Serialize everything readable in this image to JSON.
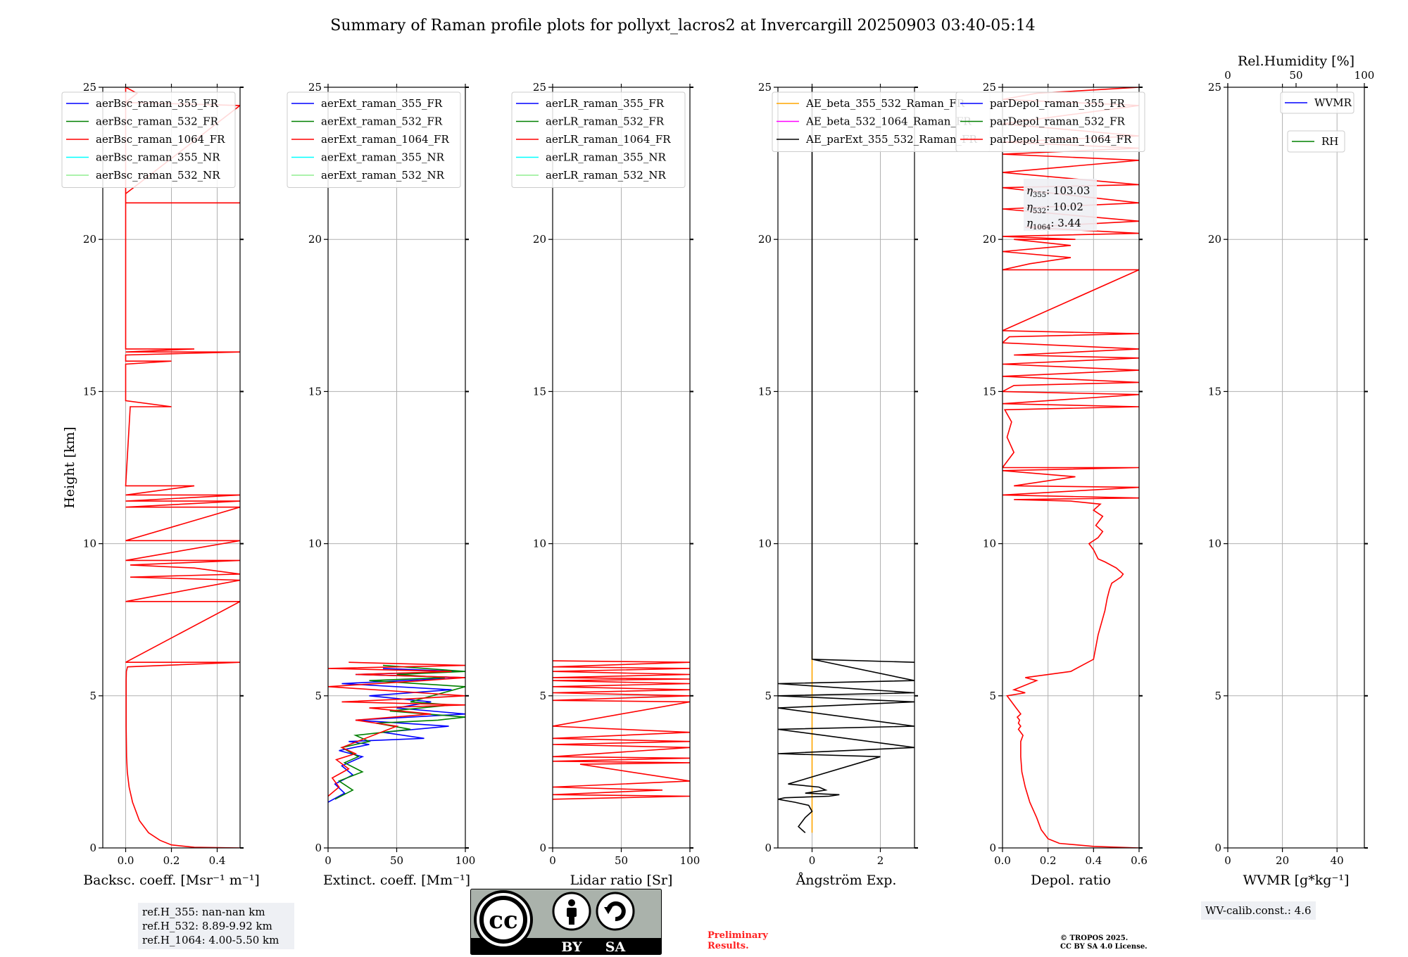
{
  "title": "Summary of Raman profile plots for pollyxt_lacros2 at Invercargill 20250903 03:40-05:14",
  "chart_data": [
    {
      "type": "line",
      "id": "bsc",
      "xlabel": "Backsc. coeff. [Msr⁻¹ m⁻¹]",
      "ylabel": "Height [km]",
      "xlim": [
        -0.1,
        0.5
      ],
      "ylim": [
        0,
        25
      ],
      "xticks": [
        0.0,
        0.2,
        0.4
      ],
      "xtick_labels": [
        "0.0",
        "0.2",
        "0.4"
      ],
      "yticks": [
        0,
        5,
        10,
        15,
        20,
        25
      ],
      "grid": true,
      "legend": [
        "aerBsc_raman_355_FR",
        "aerBsc_raman_532_FR",
        "aerBsc_raman_1064_FR",
        "aerBsc_raman_355_NR",
        "aerBsc_raman_532_NR"
      ],
      "series": [
        {
          "name": "aerBsc_raman_1064_FR",
          "color": "#ff0000",
          "x": [
            0.5,
            0.3,
            0.2,
            0.15,
            0.1,
            0.06,
            0.03,
            0.015,
            0.007,
            0.004,
            0.003,
            0.002,
            0.002,
            0.002,
            0.002,
            0.003,
            0.008,
            0.5,
            0.0,
            0.5,
            0.0,
            0.5,
            0.02,
            0.5,
            0.3,
            0.02,
            0.5,
            0.0,
            0.5,
            0.0,
            0.5,
            0.0,
            0.5,
            0.0,
            0.5,
            0.0,
            0.3,
            0.0,
            0.02,
            0.2,
            0.0,
            0.0,
            0.2,
            0.0,
            0.0,
            0.5,
            0.0,
            0.3,
            0.0,
            0.0,
            0.5,
            0.0,
            0.0
          ],
          "y": [
            0.0,
            0.02,
            0.1,
            0.25,
            0.5,
            0.9,
            1.5,
            2.0,
            2.5,
            3.0,
            3.5,
            4.0,
            4.5,
            5.0,
            5.5,
            5.8,
            5.95,
            6.1,
            6.1,
            8.1,
            8.1,
            8.8,
            8.9,
            9.0,
            9.2,
            9.3,
            9.45,
            9.45,
            10.1,
            10.1,
            11.2,
            11.2,
            11.4,
            11.4,
            11.6,
            11.6,
            11.9,
            11.9,
            14.5,
            14.5,
            14.7,
            15.9,
            16.0,
            16.0,
            16.2,
            16.3,
            16.3,
            16.4,
            16.4,
            21.2,
            21.2,
            21.2,
            25.0
          ]
        },
        {
          "name": "aerBsc_raman_1064_FR_top",
          "color": "#ff0000",
          "x": [
            0.0,
            0.5,
            0.0,
            0.05,
            0.0
          ],
          "y": [
            21.5,
            24.4,
            24.5,
            24.8,
            25.0
          ]
        }
      ]
    },
    {
      "type": "line",
      "id": "ext",
      "xlabel": "Extinct. coeff. [Mm⁻¹]",
      "xlim": [
        0,
        100
      ],
      "ylim": [
        0,
        25
      ],
      "xticks": [
        0,
        50,
        100
      ],
      "xtick_labels": [
        "0",
        "50",
        "100"
      ],
      "yticks": [
        0,
        5,
        10,
        15,
        20,
        25
      ],
      "grid": true,
      "legend": [
        "aerExt_raman_355_FR",
        "aerExt_raman_532_FR",
        "aerExt_raman_1064_FR",
        "aerExt_raman_355_NR",
        "aerExt_raman_532_NR"
      ],
      "series": [
        {
          "name": "aerExt_raman_355_FR",
          "color": "#0000ff",
          "x": [
            0,
            12,
            5,
            18,
            10,
            25,
            8,
            30,
            15,
            70,
            40,
            88,
            20,
            60,
            100,
            50,
            75,
            30,
            90,
            10,
            100,
            20,
            95,
            40
          ],
          "y": [
            1.5,
            1.8,
            2.1,
            2.4,
            2.7,
            3.0,
            3.2,
            3.4,
            3.5,
            3.6,
            3.8,
            4.0,
            4.2,
            4.3,
            4.4,
            4.6,
            4.8,
            5.0,
            5.2,
            5.4,
            5.6,
            5.7,
            5.8,
            5.9
          ]
        },
        {
          "name": "aerExt_raman_532_FR",
          "color": "#008000",
          "x": [
            5,
            18,
            8,
            25,
            12,
            22,
            10,
            30,
            20,
            60,
            35,
            80,
            100,
            45,
            90,
            60,
            100,
            30,
            85,
            50,
            100,
            40
          ],
          "y": [
            1.6,
            1.9,
            2.2,
            2.5,
            2.8,
            3.0,
            3.3,
            3.5,
            3.7,
            3.9,
            4.1,
            4.2,
            4.3,
            4.5,
            4.7,
            4.8,
            5.3,
            5.5,
            5.6,
            5.7,
            5.8,
            6.0
          ]
        },
        {
          "name": "aerExt_raman_1064_FR",
          "color": "#ff0000",
          "x": [
            0,
            8,
            3,
            15,
            6,
            20,
            10,
            50,
            20,
            75,
            30,
            100,
            10,
            60,
            100,
            0,
            70,
            100,
            20,
            90,
            0,
            100,
            15
          ],
          "y": [
            1.7,
            2.0,
            2.3,
            2.6,
            2.9,
            3.1,
            3.3,
            4.0,
            4.2,
            4.4,
            4.6,
            4.7,
            4.8,
            4.9,
            5.0,
            5.3,
            5.5,
            5.6,
            5.7,
            5.8,
            5.9,
            6.0,
            6.1
          ]
        }
      ]
    },
    {
      "type": "line",
      "id": "lr",
      "xlabel": "Lidar ratio [Sr]",
      "xlim": [
        0,
        100
      ],
      "ylim": [
        0,
        25
      ],
      "xticks": [
        0,
        50,
        100
      ],
      "xtick_labels": [
        "0",
        "50",
        "100"
      ],
      "yticks": [
        0,
        5,
        10,
        15,
        20,
        25
      ],
      "grid": true,
      "legend": [
        "aerLR_raman_355_FR",
        "aerLR_raman_532_FR",
        "aerLR_raman_1064_FR",
        "aerLR_raman_355_NR",
        "aerLR_raman_532_NR"
      ],
      "series": [
        {
          "name": "aerLR_raman_1064_FR",
          "color": "#ff0000",
          "x": [
            0,
            100,
            0,
            80,
            0,
            100,
            20,
            100,
            0,
            100,
            0,
            100,
            0,
            100,
            0,
            100,
            0,
            100,
            0,
            100,
            0,
            100,
            0,
            100,
            0,
            100,
            0,
            100,
            0,
            100,
            0,
            100,
            0
          ],
          "y": [
            1.6,
            1.7,
            1.75,
            1.9,
            2.0,
            2.2,
            2.75,
            2.8,
            2.85,
            2.95,
            3.0,
            3.3,
            3.4,
            3.5,
            3.6,
            3.8,
            4.0,
            4.8,
            4.85,
            5.0,
            5.1,
            5.2,
            5.3,
            5.4,
            5.5,
            5.55,
            5.6,
            5.7,
            5.8,
            5.9,
            5.95,
            6.1,
            6.15
          ]
        }
      ]
    },
    {
      "type": "line",
      "id": "ae",
      "xlabel": "Ångström Exp.",
      "xlim": [
        -1,
        3
      ],
      "ylim": [
        0,
        25
      ],
      "xticks": [
        0,
        2
      ],
      "xtick_labels": [
        "0",
        "2"
      ],
      "yticks": [
        0,
        5,
        10,
        15,
        20,
        25
      ],
      "grid": true,
      "legend": [
        "AE_beta_355_532_Raman_FR",
        "AE_beta_532_1064_Raman_FR",
        "AE_parExt_355_532_Raman_FR"
      ],
      "series": [
        {
          "name": "AE_beta_355_532_Raman_FR",
          "color": "#ffa500",
          "x": [
            0,
            0
          ],
          "y": [
            0.5,
            6.5
          ]
        },
        {
          "name": "AE_parExt_355_532_Raman_FR",
          "color": "#000000",
          "x": [
            -0.2,
            -0.4,
            -0.2,
            0.0,
            -0.1,
            -0.5,
            -1.0,
            -0.8,
            0.5,
            0.8,
            -0.2,
            0.4,
            0.2,
            -0.7,
            2.0,
            -1.0,
            3.0,
            -1.0,
            3.0,
            -1.0,
            3.0,
            -1.0,
            3.0,
            -1.0,
            3.0,
            0.0,
            3.0,
            0.0,
            0.0
          ],
          "y": [
            0.5,
            0.7,
            1.0,
            1.2,
            1.4,
            1.5,
            1.6,
            1.65,
            1.7,
            1.75,
            1.8,
            1.9,
            2.0,
            2.1,
            3.0,
            3.1,
            3.3,
            3.9,
            4.0,
            4.6,
            4.8,
            5.0,
            5.1,
            5.4,
            5.5,
            6.2,
            6.1,
            6.2,
            25.0
          ]
        }
      ]
    },
    {
      "type": "line",
      "id": "depol",
      "xlabel": "Depol. ratio",
      "xlim": [
        0.0,
        0.6
      ],
      "ylim": [
        0,
        25
      ],
      "xticks": [
        0.0,
        0.2,
        0.4,
        0.6
      ],
      "xtick_labels": [
        "0.0",
        "0.2",
        "0.4",
        "0.6"
      ],
      "yticks": [
        0,
        5,
        10,
        15,
        20,
        25
      ],
      "grid": true,
      "legend": [
        "parDepol_raman_355_FR",
        "parDepol_raman_532_FR",
        "parDepol_raman_1064_FR"
      ],
      "annotations": [
        {
          "sym": "η",
          "sub": "355",
          "val": ": 103.03"
        },
        {
          "sym": "η",
          "sub": "532",
          "val": ": 10.02"
        },
        {
          "sym": "η",
          "sub": "1064",
          "val": ": 3.44"
        }
      ],
      "series": [
        {
          "name": "parDepol_raman_1064_FR",
          "color": "#ff0000",
          "x": [
            0.6,
            0.4,
            0.25,
            0.2,
            0.17,
            0.15,
            0.12,
            0.1,
            0.085,
            0.08,
            0.08,
            0.09,
            0.07,
            0.08,
            0.07,
            0.075,
            0.065,
            0.08,
            0.06,
            0.04,
            0.02,
            0.1,
            0.05,
            0.15,
            0.1,
            0.3,
            0.4,
            0.42,
            0.45,
            0.46,
            0.47,
            0.48,
            0.5,
            0.52,
            0.53,
            0.5,
            0.45,
            0.42,
            0.4,
            0.38,
            0.42,
            0.44,
            0.41,
            0.44,
            0.42,
            0.4,
            0.43,
            0.3,
            0.05,
            0.6,
            0.0,
            0.6,
            0.05,
            0.32,
            0.0,
            0.6,
            0.0,
            0.05,
            0.02,
            0.04,
            0.01,
            0.6,
            0.0,
            0.6,
            0.0,
            0.05,
            0.6,
            0.0,
            0.6,
            0.0,
            0.6,
            0.05,
            0.6,
            0.0,
            0.03,
            0.6,
            0.0,
            0.6,
            0.0,
            0.12,
            0.3,
            0.0,
            0.3,
            0.05,
            0.32,
            0.0,
            0.6,
            0.1,
            0.6,
            0.0,
            0.6,
            0.0,
            0.6,
            0.0,
            0.3,
            0.6,
            0.0,
            0.6,
            0.0,
            0.6,
            0.0,
            0.6,
            0.0,
            0.15,
            0.6
          ],
          "y": [
            0.0,
            0.05,
            0.15,
            0.3,
            0.6,
            1.0,
            1.5,
            2.0,
            2.5,
            3.0,
            3.5,
            3.7,
            3.9,
            4.0,
            4.1,
            4.2,
            4.3,
            4.4,
            4.6,
            4.8,
            5.0,
            5.1,
            5.2,
            5.5,
            5.6,
            5.8,
            6.2,
            7.0,
            7.8,
            8.2,
            8.5,
            8.7,
            8.8,
            8.9,
            9.0,
            9.2,
            9.4,
            9.5,
            9.8,
            10.0,
            10.2,
            10.4,
            10.6,
            10.9,
            11.0,
            11.1,
            11.3,
            11.4,
            11.45,
            11.5,
            11.6,
            11.85,
            11.9,
            12.2,
            12.4,
            12.5,
            12.5,
            13.0,
            13.5,
            14.0,
            14.4,
            14.5,
            14.6,
            14.9,
            15.0,
            15.2,
            15.3,
            15.5,
            15.7,
            15.9,
            16.1,
            16.2,
            16.4,
            16.6,
            16.8,
            16.9,
            17.0,
            19.0,
            19.0,
            19.2,
            19.4,
            19.6,
            19.8,
            20.0,
            20.0,
            20.1,
            20.2,
            20.4,
            20.6,
            21.0,
            21.2,
            21.7,
            21.8,
            22.2,
            22.4,
            22.6,
            22.8,
            23.0,
            23.2,
            23.4,
            23.8,
            24.4,
            24.6,
            24.8,
            25.0
          ]
        }
      ]
    },
    {
      "type": "line",
      "id": "wvmr",
      "xlabel": "WVMR [g*kg⁻¹]",
      "xlim": [
        0,
        50
      ],
      "ylim": [
        0,
        25
      ],
      "xticks": [
        0,
        20,
        40
      ],
      "xtick_labels": [
        "0",
        "20",
        "40"
      ],
      "yticks": [
        0,
        5,
        10,
        15,
        20,
        25
      ],
      "top_axis": {
        "label": "Rel.Humidity [%]",
        "ticks": [
          0,
          50,
          100
        ],
        "tick_labels": [
          "0",
          "50",
          "100"
        ],
        "lim": [
          0,
          100
        ]
      },
      "grid": true,
      "legend": [
        "WVMR",
        "RH"
      ],
      "series": []
    }
  ],
  "legend_colors": [
    "#0000ff",
    "#008000",
    "#ff0000",
    "#00ffff",
    "#90ee90"
  ],
  "ae_legend_colors": [
    "#ffa500",
    "#ff00ff",
    "#000000"
  ],
  "depol_legend_colors": [
    "#0000ff",
    "#008000",
    "#ff0000"
  ],
  "wv_legend_colors": [
    "#0000ff",
    "#008000"
  ],
  "ref_heights": {
    "h355": "ref.H_355: nan-nan km",
    "h532": "ref.H_532: 8.89-9.92 km",
    "h1064": "ref.H_1064: 4.00-5.50 km"
  },
  "wv_calib": "WV-calib.const.: 4.6",
  "preliminary": {
    "line1": "Preliminary",
    "line2": "Results."
  },
  "copyright": {
    "line1": "© TROPOS 2025.",
    "line2": "CC BY SA 4.0 License."
  },
  "license_badge": {
    "cc": "cc",
    "by": "BY",
    "sa": "SA"
  }
}
